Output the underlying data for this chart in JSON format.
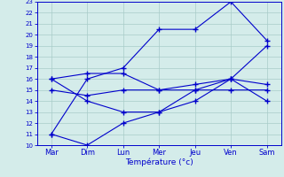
{
  "days": [
    "Mar",
    "Dim",
    "Lun",
    "Mer",
    "Jeu",
    "Ven",
    "Sam"
  ],
  "lines": [
    [
      11,
      16,
      17,
      20.5,
      20.5,
      23,
      19.5
    ],
    [
      16,
      14,
      13,
      13,
      14,
      16,
      14
    ],
    [
      11,
      10,
      12,
      13,
      15,
      16,
      19
    ],
    [
      15,
      14.5,
      15,
      15,
      15.5,
      16,
      15.5
    ],
    [
      16,
      16.5,
      16.5,
      15,
      15,
      15,
      15
    ]
  ],
  "xlabel": "Température (°c)",
  "ylim": [
    10,
    23
  ],
  "yticks": [
    10,
    11,
    12,
    13,
    14,
    15,
    16,
    17,
    18,
    19,
    20,
    21,
    22,
    23
  ],
  "line_color": "#0000cc",
  "bg_color": "#d4ecea",
  "grid_color": "#a8ccc8"
}
